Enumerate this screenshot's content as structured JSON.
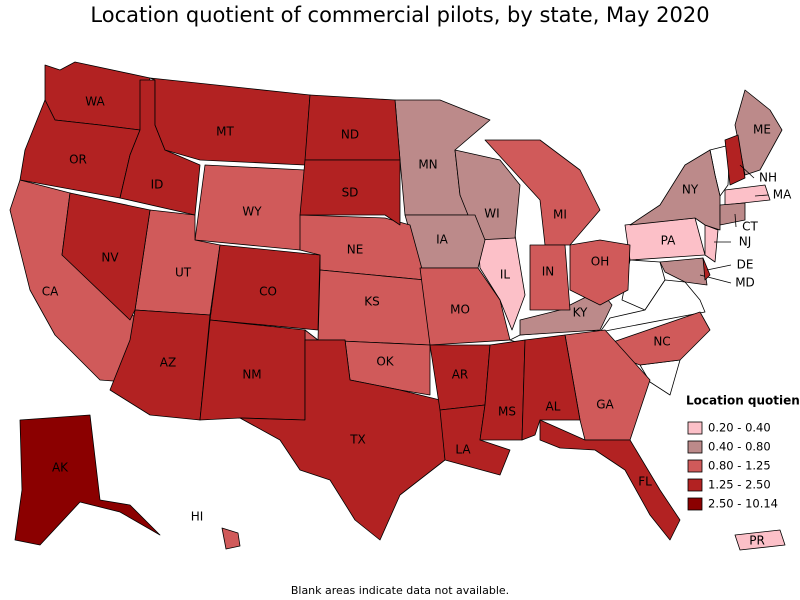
{
  "title": "Location quotient of commercial pilots, by state, May 2020",
  "footnote": "Blank areas indicate data not available.",
  "legend": {
    "title": "Location quotient",
    "bins": [
      {
        "label": "0.20 - 0.40",
        "color": "#fcc0c8",
        "states": [
          "IL",
          "PA",
          "NJ",
          "MA",
          "PR"
        ]
      },
      {
        "label": "0.40 - 0.80",
        "color": "#bc8a8a",
        "states": [
          "MN",
          "WI",
          "IA",
          "NY",
          "KY",
          "ME",
          "CT",
          "MD"
        ]
      },
      {
        "label": "0.80 - 1.25",
        "color": "#d05a5a",
        "states": [
          "CA",
          "WY",
          "UT",
          "NE",
          "KS",
          "OK",
          "MO",
          "MI",
          "IN",
          "OH",
          "NC",
          "GA",
          "HI"
        ]
      },
      {
        "label": "1.25 - 2.50",
        "color": "#b22222",
        "states": [
          "WA",
          "OR",
          "ID",
          "MT",
          "ND",
          "SD",
          "NV",
          "CO",
          "AZ",
          "NM",
          "TX",
          "AR",
          "LA",
          "MS",
          "AL",
          "FL",
          "NH",
          "DE"
        ]
      },
      {
        "label": "2.50 - 10.14",
        "color": "#8b0000",
        "states": [
          "AK"
        ]
      }
    ]
  }
}
